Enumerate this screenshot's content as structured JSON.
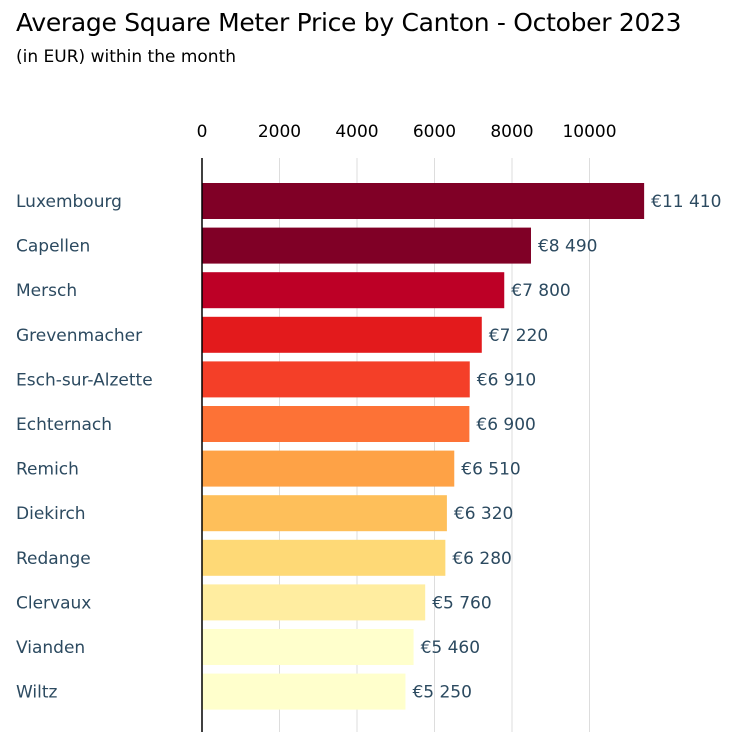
{
  "chart_data": {
    "type": "bar",
    "orientation": "horizontal",
    "title": "Average Square Meter Price by Canton - October 2023",
    "subtitle": "(in EUR) within the month",
    "xlabel": "",
    "ylabel": "",
    "xlim": [
      0,
      11410
    ],
    "x_ticks": [
      0,
      2000,
      4000,
      6000,
      8000,
      10000
    ],
    "x_axis_position": "top",
    "grid": true,
    "categories": [
      "Luxembourg",
      "Capellen",
      "Mersch",
      "Grevenmacher",
      "Esch-sur-Alzette",
      "Echternach",
      "Remich",
      "Diekirch",
      "Redange",
      "Clervaux",
      "Vianden",
      "Wiltz"
    ],
    "values": [
      11410,
      8490,
      7800,
      7220,
      6910,
      6900,
      6510,
      6320,
      6280,
      5760,
      5460,
      5250
    ],
    "value_labels": [
      "€11 410",
      "€8 490",
      "€7 800",
      "€7 220",
      "€6 910",
      "€6 900",
      "€6 510",
      "€6 320",
      "€6 280",
      "€5 760",
      "€5 460",
      "€5 250"
    ],
    "colors": [
      "#800026",
      "#800026",
      "#bd0026",
      "#e31a1c",
      "#f43f28",
      "#fd7236",
      "#fea246",
      "#febf5a",
      "#fed976",
      "#ffeda0",
      "#ffffcc",
      "#ffffcc"
    ]
  }
}
